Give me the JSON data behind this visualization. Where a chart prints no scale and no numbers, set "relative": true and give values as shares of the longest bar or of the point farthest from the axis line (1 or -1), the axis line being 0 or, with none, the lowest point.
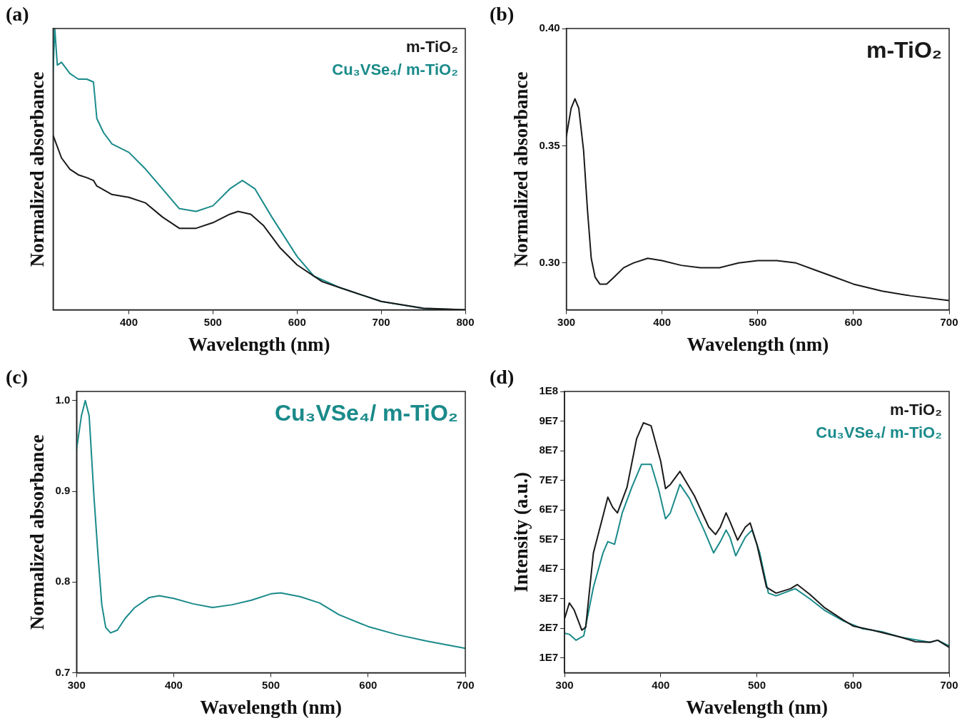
{
  "chart_data": [
    {
      "type": "line",
      "annotations": [
        "(a)"
      ],
      "xlabel": "Wavelength (nm)",
      "ylabel": "Normalized absorbance",
      "relative": true,
      "xlim": [
        310,
        800
      ],
      "xticks": [
        400,
        500,
        600,
        700,
        800
      ],
      "legend": "top right",
      "series": [
        {
          "name": "m-TiO₂",
          "color": "#1a1a1a",
          "x": [
            310,
            320,
            330,
            340,
            350,
            358,
            362,
            380,
            400,
            420,
            440,
            460,
            480,
            500,
            520,
            530,
            545,
            560,
            580,
            600,
            630,
            660,
            700,
            750,
            800
          ],
          "values": [
            0.62,
            0.54,
            0.5,
            0.48,
            0.47,
            0.46,
            0.44,
            0.41,
            0.4,
            0.38,
            0.33,
            0.29,
            0.29,
            0.31,
            0.34,
            0.35,
            0.34,
            0.3,
            0.22,
            0.16,
            0.1,
            0.07,
            0.03,
            0.006,
            0
          ]
        },
        {
          "name": "Cu₃VSe₄/ m-TiO₂",
          "color": "#1a8a8a",
          "x": [
            310,
            312,
            315,
            320,
            330,
            340,
            350,
            358,
            362,
            370,
            380,
            400,
            420,
            440,
            460,
            480,
            500,
            520,
            535,
            550,
            570,
            600,
            620,
            650,
            700,
            750,
            800
          ],
          "values": [
            0.85,
            1,
            0.87,
            0.88,
            0.84,
            0.82,
            0.82,
            0.81,
            0.68,
            0.63,
            0.59,
            0.56,
            0.5,
            0.43,
            0.36,
            0.35,
            0.37,
            0.43,
            0.46,
            0.43,
            0.33,
            0.19,
            0.12,
            0.08,
            0.03,
            0.005,
            0
          ]
        }
      ]
    },
    {
      "type": "line",
      "annotations": [
        "(b)"
      ],
      "xlabel": "Wavelength (nm)",
      "ylabel": "Normalized absorbance",
      "xlim": [
        300,
        700
      ],
      "xticks": [
        300,
        400,
        500,
        600,
        700
      ],
      "ylim": [
        0.28,
        0.4
      ],
      "yticks": [
        {
          "value": 0.3,
          "label": "0.30"
        },
        0.35,
        {
          "value": 0.4,
          "label": "0.40"
        }
      ],
      "legend": "top right",
      "series": [
        {
          "name": "m-TiO₂",
          "color": "#1a1a1a",
          "x": [
            300,
            305,
            309,
            313,
            318,
            322,
            326,
            330,
            335,
            342,
            350,
            360,
            370,
            385,
            400,
            420,
            440,
            460,
            480,
            500,
            520,
            540,
            560,
            580,
            600,
            630,
            660,
            700
          ],
          "values": [
            0.354,
            0.366,
            0.37,
            0.366,
            0.348,
            0.323,
            0.302,
            0.294,
            0.291,
            0.291,
            0.294,
            0.298,
            0.3,
            0.302,
            0.301,
            0.299,
            0.298,
            0.298,
            0.3,
            0.301,
            0.301,
            0.3,
            0.297,
            0.294,
            0.291,
            0.288,
            0.286,
            0.284
          ]
        }
      ]
    },
    {
      "type": "line",
      "annotations": [
        "(c)"
      ],
      "xlabel": "Wavelength (nm)",
      "ylabel": "Normalized absorbance",
      "xlim": [
        300,
        700
      ],
      "xticks": [
        300,
        400,
        500,
        600,
        700
      ],
      "ylim": [
        0.7,
        1.01
      ],
      "yticks": [
        0.7,
        0.8,
        0.9,
        {
          "value": 1,
          "label": "1.0"
        }
      ],
      "legend": "top right",
      "series": [
        {
          "name": "Cu₃VSe₄/ m-TiO₂",
          "color": "#1a8a8a",
          "x": [
            300,
            305,
            309,
            313,
            318,
            322,
            326,
            330,
            335,
            342,
            350,
            360,
            375,
            385,
            400,
            420,
            440,
            460,
            480,
            500,
            510,
            530,
            550,
            570,
            600,
            630,
            660,
            700
          ],
          "values": [
            0.946,
            0.983,
            1,
            0.983,
            0.893,
            0.831,
            0.775,
            0.75,
            0.744,
            0.747,
            0.76,
            0.772,
            0.783,
            0.785,
            0.782,
            0.776,
            0.772,
            0.775,
            0.78,
            0.787,
            0.788,
            0.784,
            0.777,
            0.764,
            0.751,
            0.742,
            0.735,
            0.727
          ]
        }
      ]
    },
    {
      "type": "line",
      "annotations": [
        "(d)"
      ],
      "xlabel": "Wavelength (nm)",
      "ylabel": "Intensity (a.u.)",
      "xlim": [
        300,
        700
      ],
      "xticks": [
        300,
        400,
        500,
        600,
        700
      ],
      "ylim": [
        5000000.0,
        100000000.0
      ],
      "yticks": [
        {
          "value": 10000000.0,
          "label": "1E7"
        },
        {
          "value": 20000000.0,
          "label": "2E7"
        },
        {
          "value": 30000000.0,
          "label": "3E7"
        },
        {
          "value": 40000000.0,
          "label": "4E7"
        },
        {
          "value": 50000000.0,
          "label": "5E7"
        },
        {
          "value": 60000000.0,
          "label": "6E7"
        },
        {
          "value": 70000000.0,
          "label": "7E7"
        },
        {
          "value": 80000000.0,
          "label": "8E7"
        },
        {
          "value": 90000000.0,
          "label": "9E7"
        },
        {
          "value": 100000000.0,
          "label": "1E8"
        }
      ],
      "legend": "top right",
      "series": [
        {
          "name": "m-TiO₂",
          "color": "#1a1a1a",
          "x": [
            300,
            305,
            310,
            318,
            322,
            330,
            340,
            345,
            350,
            355,
            365,
            375,
            382,
            390,
            400,
            405,
            410,
            420,
            435,
            450,
            457,
            462,
            468,
            472,
            480,
            488,
            493,
            500,
            510,
            520,
            535,
            542,
            555,
            570,
            590,
            600,
            620,
            650,
            665,
            680,
            688,
            700
          ],
          "values": [
            23300000.0,
            28600000.0,
            26200000.0,
            19400000.0,
            20400000.0,
            45500000.0,
            58000000.0,
            64300000.0,
            60900000.0,
            59000000.0,
            67700000.0,
            84100000.0,
            89400000.0,
            88400000.0,
            76400000.0,
            67200000.0,
            68600000.0,
            73000000.0,
            64800000.0,
            54200000.0,
            51700000.0,
            54200000.0,
            59000000.0,
            56100000.0,
            49800000.0,
            54200000.0,
            55600000.0,
            48400000.0,
            33900000.0,
            31900000.0,
            33400000.0,
            34800000.0,
            31500000.0,
            27100000.0,
            22800000.0,
            20800000.0,
            19400000.0,
            17000000.0,
            15500000.0,
            15300000.0,
            16000000.0,
            13600000.0
          ]
        },
        {
          "name": "Cu₃VSe₄/ m-TiO₂",
          "color": "#1a8a8a",
          "x": [
            300,
            305,
            312,
            320,
            330,
            340,
            345,
            352,
            360,
            370,
            380,
            390,
            398,
            405,
            410,
            420,
            430,
            445,
            455,
            462,
            468,
            472,
            478,
            488,
            495,
            503,
            512,
            520,
            540,
            555,
            570,
            590,
            610,
            630,
            650,
            680,
            688,
            700
          ],
          "values": [
            18400000.0,
            18000000.0,
            16000000.0,
            17500000.0,
            33900000.0,
            45500000.0,
            49300000.0,
            48400000.0,
            59000000.0,
            67700000.0,
            75400000.0,
            75400000.0,
            66700000.0,
            57000000.0,
            59000000.0,
            68600000.0,
            63800000.0,
            53200000.0,
            45500000.0,
            49300000.0,
            53200000.0,
            50800000.0,
            44500000.0,
            50800000.0,
            53200000.0,
            45500000.0,
            31900000.0,
            31000000.0,
            33400000.0,
            30000000.0,
            26200000.0,
            22500000.0,
            19900000.0,
            18900000.0,
            17000000.0,
            15300000.0,
            16000000.0,
            14100000.0
          ]
        }
      ]
    }
  ]
}
